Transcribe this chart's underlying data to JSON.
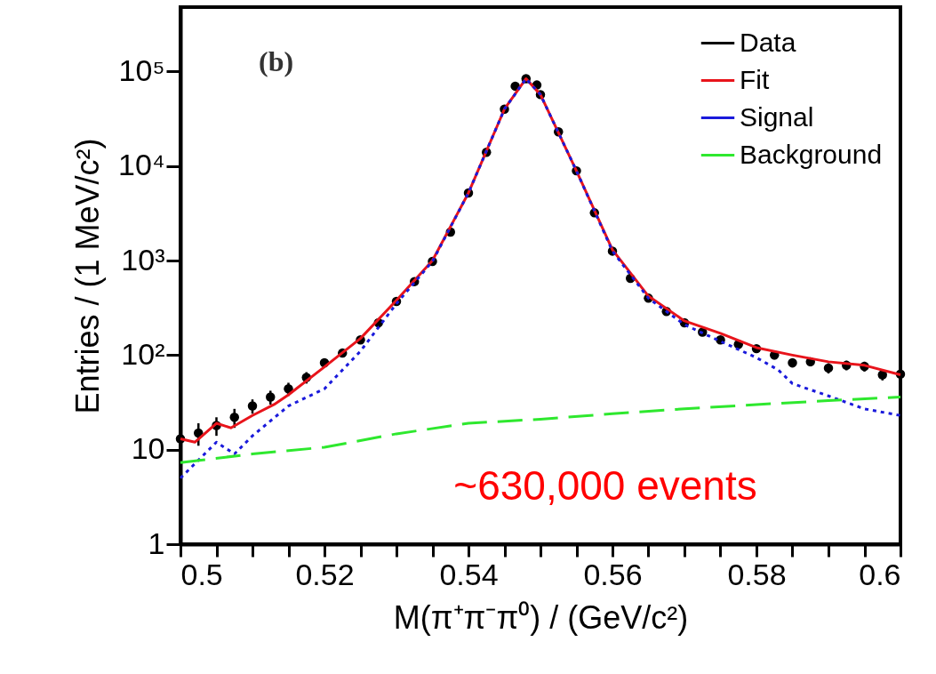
{
  "chart_data": {
    "type": "scatter",
    "xlabel": "M(π⁺π⁻π⁰) / (GeV/c²)",
    "ylabel": "Entries / (1 MeV/c²)",
    "log": "y",
    "legend": "top right",
    "grid": false,
    "annotations": [
      "(b)",
      "~630,000 events"
    ],
    "xlim": [
      0.5,
      0.6
    ],
    "xticks": [
      0.5,
      {
        "value": 0.505,
        "label": null
      },
      0.52,
      {
        "value": 0.51,
        "label": null
      },
      {
        "value": 0.515,
        "label": null
      },
      {
        "value": 0.525,
        "label": null
      },
      {
        "value": 0.53,
        "label": null
      },
      {
        "value": 0.535,
        "label": null
      },
      0.54,
      {
        "value": 0.545,
        "label": null
      },
      {
        "value": 0.55,
        "label": null
      },
      {
        "value": 0.555,
        "label": null
      },
      0.56,
      {
        "value": 0.565,
        "label": null
      },
      {
        "value": 0.57,
        "label": null
      },
      {
        "value": 0.575,
        "label": null
      },
      0.58,
      {
        "value": 0.585,
        "label": null
      },
      {
        "value": 0.59,
        "label": null
      },
      {
        "value": 0.595,
        "label": null
      },
      0.6
    ],
    "ylim": [
      1,
      480000
    ],
    "yticks": [
      1,
      10,
      {
        "value": 100,
        "label": "10²"
      },
      {
        "value": 1000,
        "label": "10³"
      },
      {
        "value": 10000,
        "label": "10⁴"
      },
      {
        "value": 100000,
        "label": "10⁵"
      }
    ],
    "series": [
      {
        "name": "Data",
        "type": "scatter",
        "marker": "circle",
        "color": "#000000",
        "x": [
          0.5,
          0.5025,
          0.505,
          0.5075,
          0.51,
          0.5125,
          0.515,
          0.5175,
          0.52,
          0.5225,
          0.525,
          0.5275,
          0.53,
          0.5325,
          0.535,
          0.5375,
          0.54,
          0.5425,
          0.545,
          0.5465,
          0.548,
          0.5495,
          0.55,
          0.5525,
          0.555,
          0.5575,
          0.56,
          0.5625,
          0.565,
          0.5675,
          0.57,
          0.5725,
          0.575,
          0.5775,
          0.58,
          0.5825,
          0.585,
          0.5875,
          0.59,
          0.5925,
          0.595,
          0.5975,
          0.6
        ],
        "values": [
          13,
          15,
          18,
          22,
          29,
          36,
          44,
          58,
          83,
          105,
          145,
          220,
          370,
          600,
          980,
          2000,
          5200,
          14000,
          40000,
          70000,
          84000,
          72000,
          57000,
          23000,
          8900,
          3200,
          1260,
          650,
          400,
          290,
          220,
          175,
          145,
          130,
          117,
          100,
          83,
          85,
          73,
          78,
          76,
          62,
          63
        ],
        "errors": [
          4,
          4,
          4,
          5,
          5,
          6,
          7,
          8,
          9,
          10,
          12,
          15,
          null,
          null,
          null,
          null,
          null,
          null,
          null,
          null,
          null,
          null,
          null,
          null,
          null,
          null,
          null,
          null,
          null,
          null,
          15,
          13,
          12,
          11,
          11,
          10,
          9,
          9,
          9,
          9,
          9,
          8,
          8
        ]
      },
      {
        "name": "Fit",
        "type": "line",
        "line_style": "solid",
        "color": "#e8141b",
        "x": [
          0.5,
          0.502,
          0.505,
          0.507,
          0.51,
          0.513,
          0.515,
          0.52,
          0.525,
          0.53,
          0.535,
          0.54,
          0.545,
          0.548,
          0.55,
          0.555,
          0.56,
          0.565,
          0.57,
          0.575,
          0.58,
          0.585,
          0.59,
          0.595,
          0.6
        ],
        "values": [
          13,
          12,
          19,
          17,
          23,
          30,
          38,
          75,
          150,
          380,
          1000,
          5200,
          40000,
          84000,
          57000,
          8900,
          1300,
          420,
          230,
          170,
          120,
          100,
          85,
          78,
          62
        ]
      },
      {
        "name": "Signal",
        "type": "line",
        "line_style": "dotted",
        "color": "#1a1adb",
        "x": [
          0.5,
          0.505,
          0.5075,
          0.51,
          0.515,
          0.52,
          0.525,
          0.53,
          0.535,
          0.54,
          0.545,
          0.548,
          0.55,
          0.555,
          0.56,
          0.565,
          0.57,
          0.575,
          0.58,
          0.583,
          0.585,
          0.59,
          0.595,
          0.6
        ],
        "values": [
          5,
          12,
          9,
          14,
          29,
          44,
          110,
          350,
          980,
          5200,
          40000,
          84000,
          57000,
          8900,
          1260,
          400,
          210,
          140,
          94,
          70,
          50,
          37,
          27,
          23
        ]
      },
      {
        "name": "Background",
        "type": "line",
        "line_style": "dashed",
        "color": "#2ee82e",
        "x": [
          0.5,
          0.51,
          0.52,
          0.53,
          0.54,
          0.55,
          0.56,
          0.57,
          0.58,
          0.59,
          0.6
        ],
        "values": [
          7.3,
          9,
          10.6,
          14.7,
          19,
          21,
          24,
          27,
          30,
          33,
          36
        ]
      }
    ]
  }
}
